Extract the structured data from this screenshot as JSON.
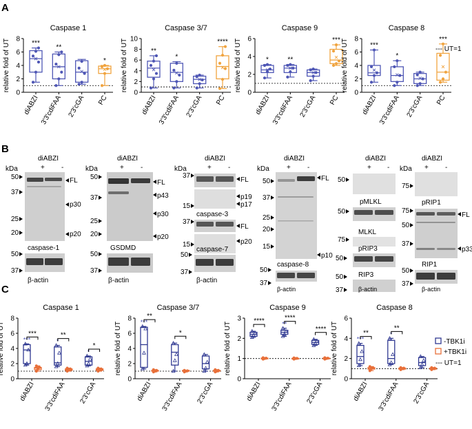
{
  "panels": {
    "A": "A",
    "B": "B",
    "C": "C"
  },
  "panelA": {
    "legend": "--- UT=1",
    "ylabel": "relative fold of UT",
    "charts": [
      {
        "title": "Caspase 1",
        "ymax": 8,
        "yticks": [
          0,
          2,
          4,
          6,
          8
        ],
        "ref": 1,
        "categories": [
          "diABZI",
          "3'3'cdiFAA",
          "2'3'cGA",
          "PC"
        ],
        "boxes": [
          {
            "min": 1.5,
            "q1": 3.0,
            "median": 5.0,
            "q3": 6.2,
            "max": 6.6,
            "mean": 5.0,
            "points": [
              1.5,
              3,
              4.5,
              5.4,
              6.1,
              6.6
            ],
            "sig": "***"
          },
          {
            "min": 1.0,
            "q1": 2.0,
            "median": 3.8,
            "q3": 5.7,
            "max": 6.0,
            "mean": 3.8,
            "points": [
              1,
              2,
              3,
              4.2,
              5.6,
              6
            ],
            "sig": "**"
          },
          {
            "min": 1.2,
            "q1": 1.5,
            "median": 3.0,
            "q3": 4.7,
            "max": 4.9,
            "mean": 3.1,
            "points": [
              1.2,
              1.5,
              2.8,
              3.6,
              4.6
            ],
            "sig": ""
          },
          {
            "min": 1.0,
            "q1": 2.8,
            "median": 3.5,
            "q3": 3.9,
            "max": 4.0,
            "mean": 3.4,
            "points": [
              1,
              2.8,
              3.5,
              3.8,
              4
            ],
            "sig": "*"
          }
        ]
      },
      {
        "title": "Caspase 3/7",
        "ymax": 10,
        "yticks": [
          0,
          2,
          4,
          6,
          8,
          10
        ],
        "ref": 1,
        "categories": [
          "diABZI",
          "3'3'cdiFAA",
          "2'3'cGA",
          "PC"
        ],
        "boxes": [
          {
            "min": 0.8,
            "q1": 2.8,
            "median": 4.5,
            "q3": 5.8,
            "max": 6.8,
            "mean": 4.2,
            "points": [
              0.8,
              2.5,
              3.5,
              5,
              5.8,
              6.8
            ],
            "sig": "**"
          },
          {
            "min": 0.8,
            "q1": 2.0,
            "median": 3.7,
            "q3": 5.4,
            "max": 5.7,
            "mean": 3.6,
            "points": [
              0.8,
              2,
              3.2,
              4.1,
              5.4
            ],
            "sig": "*"
          },
          {
            "min": 0.8,
            "q1": 1.6,
            "median": 2.4,
            "q3": 3.0,
            "max": 3.2,
            "mean": 2.4,
            "points": [
              0.8,
              1.6,
              2.3,
              2.9,
              3.2
            ],
            "sig": ""
          },
          {
            "min": 0.7,
            "q1": 2.5,
            "median": 4.8,
            "q3": 6.8,
            "max": 8.5,
            "mean": 4.6,
            "points": [
              0.7,
              2.4,
              4.4,
              5.4,
              6.9,
              8.5
            ],
            "sig": "****"
          }
        ]
      },
      {
        "title": "Caspase 9",
        "ymax": 6,
        "yticks": [
          0,
          2,
          4,
          6
        ],
        "ref": 1,
        "categories": [
          "diABZI",
          "3'3'cdiFAA",
          "2'3'cGA",
          "PC"
        ],
        "boxes": [
          {
            "min": 1.6,
            "q1": 2.2,
            "median": 2.5,
            "q3": 3.0,
            "max": 3.1,
            "mean": 2.5,
            "points": [
              1.6,
              2.3,
              2.6,
              3,
              3.1
            ],
            "sig": "*"
          },
          {
            "min": 1.7,
            "q1": 2.2,
            "median": 2.7,
            "q3": 3.0,
            "max": 3.1,
            "mean": 2.7,
            "points": [
              1.7,
              2.3,
              2.7,
              3,
              3.1
            ],
            "sig": "**"
          },
          {
            "min": 1.3,
            "q1": 1.8,
            "median": 2.2,
            "q3": 2.5,
            "max": 2.6,
            "mean": 2.2,
            "points": [
              1.3,
              1.8,
              2.2,
              2.5,
              2.6
            ],
            "sig": ""
          },
          {
            "min": 3.0,
            "q1": 3.2,
            "median": 3.6,
            "q3": 4.8,
            "max": 5.3,
            "mean": 3.9,
            "points": [
              3,
              3.2,
              3.5,
              4.6,
              5.3
            ],
            "sig": "***"
          }
        ]
      },
      {
        "title": "Caspase 8",
        "ymax": 8,
        "yticks": [
          0,
          2,
          4,
          6,
          8
        ],
        "ref": 1,
        "categories": [
          "diABZI",
          "3'3'cdiFAA",
          "2'3'cGA",
          "PC"
        ],
        "boxes": [
          {
            "min": 1.5,
            "q1": 2.5,
            "median": 2.9,
            "q3": 4.0,
            "max": 6.3,
            "mean": 3.3,
            "points": [
              1.5,
              2.5,
              2.9,
              3.8,
              6.3
            ],
            "sig": "***"
          },
          {
            "min": 1.0,
            "q1": 1.6,
            "median": 2.5,
            "q3": 3.8,
            "max": 4.7,
            "mean": 2.6,
            "points": [
              1,
              1.5,
              2.5,
              3.8,
              4.7
            ],
            "sig": "*"
          },
          {
            "min": 1.0,
            "q1": 1.3,
            "median": 2.0,
            "q3": 2.8,
            "max": 3.0,
            "mean": 2.1,
            "points": [
              1,
              1.3,
              2,
              2.6,
              3
            ],
            "sig": ""
          },
          {
            "min": 1.5,
            "q1": 1.8,
            "median": 3.0,
            "q3": 5.8,
            "max": 7.2,
            "mean": 3.8,
            "points": [
              1.5,
              2,
              3,
              5.5,
              7.2
            ],
            "sig": "***"
          }
        ]
      }
    ]
  },
  "panelB": {
    "kda": "kDa",
    "treatment": "diABZI",
    "plus": "+",
    "minus": "-",
    "blots": [
      {
        "markers": [
          "50",
          "37",
          "25",
          "20"
        ],
        "bands": [
          "FL",
          "p30",
          "p20"
        ],
        "name": "caspase-1",
        "actin_marker_top": "50",
        "actin_marker_bottom": "37",
        "actin": "β-actin"
      },
      {
        "markers": [
          "50",
          "37",
          "25",
          "20"
        ],
        "bands": [
          "FL",
          "p43",
          "p30",
          "p20"
        ],
        "name": "GSDMD",
        "actin_marker_top": "50",
        "actin_marker_bottom": "37",
        "actin": "β-actin"
      },
      {
        "markers": [
          "37",
          "15",
          "37",
          "15",
          "50",
          "37"
        ],
        "bands": [
          "FL",
          "p19",
          "p17",
          "FL",
          "p20"
        ],
        "name1": "caspase-3",
        "name2": "caspase-7",
        "actin": "β-actin"
      },
      {
        "markers": [
          "50",
          "37",
          "25",
          "20",
          "15",
          "50",
          "37"
        ],
        "bands": [
          "FL",
          "p10"
        ],
        "name": "caspase-8",
        "actin": "β-actin"
      },
      {
        "markers": [
          "50",
          "50",
          "75",
          "50",
          "50",
          "37"
        ],
        "names": [
          "pMLKL",
          "MLKL",
          "pRIP3",
          "RIP3"
        ],
        "actin": "β-actin"
      },
      {
        "markers": [
          "75",
          "75",
          "50",
          "37",
          "50",
          "37"
        ],
        "bands": [
          "FL",
          "p33"
        ],
        "names": [
          "pRIP1",
          "RIP1"
        ],
        "actin": "β-actin"
      }
    ]
  },
  "panelC": {
    "legend": {
      "minus": "-TBK1i",
      "plus": "+TBK1i",
      "ref": "--- UT=1"
    },
    "ylabel": "relative fold of UT",
    "colors": {
      "minus": "#2f3891",
      "plus": "#e8703a",
      "panelA": "#4f57b5",
      "pc": "#f0a440"
    },
    "charts": [
      {
        "title": "Caspase 1",
        "ymax": 8,
        "yticks": [
          0,
          2,
          4,
          6,
          8
        ],
        "ref": 1,
        "categories": [
          "diABZI",
          "3'3'cdiFAA",
          "2'3'cGA"
        ],
        "pairs": [
          {
            "minus": {
              "min": 1.8,
              "q1": 2.0,
              "median": 3.8,
              "q3": 4.5,
              "max": 4.6,
              "points": [
                1.8,
                2,
                3.8,
                4.6
              ]
            },
            "plus": {
              "min": 1.0,
              "q1": 1.2,
              "median": 1.4,
              "q3": 1.5,
              "max": 1.7,
              "points": [
                1,
                1.3,
                1.5,
                1.7
              ]
            },
            "sig_top": "***",
            "sig_minus": "***"
          },
          {
            "minus": {
              "min": 1.6,
              "q1": 1.8,
              "median": 2.1,
              "q3": 4.2,
              "max": 4.4,
              "points": [
                1.6,
                2,
                3.4,
                4.4
              ]
            },
            "plus": {
              "min": 1.0,
              "q1": 1.1,
              "median": 1.2,
              "q3": 1.3,
              "max": 1.4,
              "points": [
                1,
                1.2,
                1.3,
                1.4
              ]
            },
            "sig_top": "**",
            "sig_minus": "*"
          },
          {
            "minus": {
              "min": 1.7,
              "q1": 1.8,
              "median": 2.3,
              "q3": 2.9,
              "max": 3.0,
              "points": [
                1.7,
                2,
                2.6,
                3
              ]
            },
            "plus": {
              "min": 1.0,
              "q1": 1.1,
              "median": 1.2,
              "q3": 1.3,
              "max": 1.4,
              "points": [
                1,
                1.2,
                1.3,
                1.4
              ]
            },
            "sig_top": "*",
            "sig_minus": "*"
          }
        ]
      },
      {
        "title": "Caspase 3/7",
        "ymax": 8,
        "yticks": [
          0,
          2,
          4,
          6,
          8
        ],
        "ref": 1,
        "categories": [
          "diABZI",
          "3'3'cdiFAA",
          "2'3'cGA"
        ],
        "pairs": [
          {
            "minus": {
              "min": 1.3,
              "q1": 1.5,
              "median": 4.5,
              "q3": 6.8,
              "max": 6.9,
              "points": [
                1.3,
                3.4,
                6.6,
                6.9
              ]
            },
            "plus": {
              "min": 0.9,
              "q1": 1.0,
              "median": 1.05,
              "q3": 1.1,
              "max": 1.2,
              "points": [
                0.9,
                1,
                1.1,
                1.2
              ]
            },
            "sig_top": "**",
            "sig_minus": "***"
          },
          {
            "minus": {
              "min": 1.0,
              "q1": 1.8,
              "median": 3.5,
              "q3": 4.5,
              "max": 4.7,
              "points": [
                1,
                2.4,
                3.2,
                4.7
              ]
            },
            "plus": {
              "min": 0.9,
              "q1": 1.0,
              "median": 1.0,
              "q3": 1.1,
              "max": 1.1,
              "points": [
                0.9,
                1,
                1.05,
                1.1
              ]
            },
            "sig_top": "*",
            "sig_minus": ""
          },
          {
            "minus": {
              "min": 1.0,
              "q1": 1.3,
              "median": 2.0,
              "q3": 3.0,
              "max": 3.2,
              "points": [
                1,
                1.4,
                2.2,
                3.2
              ]
            },
            "plus": {
              "min": 0.9,
              "q1": 1.0,
              "median": 1.0,
              "q3": 1.1,
              "max": 1.2,
              "points": [
                0.9,
                1,
                1.1,
                1.2
              ]
            },
            "sig_top": "",
            "sig_minus": ""
          }
        ]
      },
      {
        "title": "Caspase 9",
        "ymax": 3,
        "yticks": [
          0,
          1,
          2,
          3
        ],
        "ref": 1,
        "categories": [
          "diABZI",
          "3'3'cdiFAA",
          "2'3'cGA"
        ],
        "pairs": [
          {
            "minus": {
              "min": 2.05,
              "q1": 2.1,
              "median": 2.2,
              "q3": 2.3,
              "max": 2.35,
              "points": [
                2.05,
                2.15,
                2.25,
                2.35
              ]
            },
            "plus": {
              "min": 0.97,
              "q1": 0.99,
              "median": 1.0,
              "q3": 1.02,
              "max": 1.04,
              "points": [
                0.97,
                1,
                1.02,
                1.04
              ]
            },
            "sig_top": "****",
            "sig_minus": ""
          },
          {
            "minus": {
              "min": 2.1,
              "q1": 2.2,
              "median": 2.3,
              "q3": 2.4,
              "max": 2.5,
              "points": [
                2.1,
                2.2,
                2.35,
                2.5
              ]
            },
            "plus": {
              "min": 0.97,
              "q1": 0.99,
              "median": 1.0,
              "q3": 1.01,
              "max": 1.03,
              "points": [
                0.97,
                1,
                1.01,
                1.03
              ]
            },
            "sig_top": "****",
            "sig_minus": "**"
          },
          {
            "minus": {
              "min": 1.65,
              "q1": 1.7,
              "median": 1.8,
              "q3": 1.9,
              "max": 1.95,
              "points": [
                1.65,
                1.75,
                1.85,
                1.95
              ]
            },
            "plus": {
              "min": 0.97,
              "q1": 0.99,
              "median": 1.0,
              "q3": 1.02,
              "max": 1.04,
              "points": [
                0.97,
                1,
                1.02,
                1.04
              ]
            },
            "sig_top": "****",
            "sig_minus": ""
          }
        ]
      },
      {
        "title": "Caspase 8",
        "ymax": 6,
        "yticks": [
          0,
          2,
          4,
          6
        ],
        "ref": 1,
        "categories": [
          "diABZI",
          "3'3'cdiFAA",
          "2'3'cGA"
        ],
        "pairs": [
          {
            "minus": {
              "min": 1.3,
              "q1": 1.5,
              "median": 2.2,
              "q3": 3.3,
              "max": 3.5,
              "points": [
                1.3,
                1.9,
                2.7,
                3.5
              ]
            },
            "plus": {
              "min": 0.8,
              "q1": 0.95,
              "median": 1.0,
              "q3": 1.1,
              "max": 1.2,
              "points": [
                0.8,
                1,
                1.1,
                1.2
              ]
            },
            "sig_top": "**",
            "sig_minus": "***"
          },
          {
            "minus": {
              "min": 1.4,
              "q1": 1.5,
              "median": 2.0,
              "q3": 3.8,
              "max": 4.0,
              "points": [
                1.4,
                1.6,
                2.4,
                4
              ]
            },
            "plus": {
              "min": 0.9,
              "q1": 0.95,
              "median": 1.0,
              "q3": 1.05,
              "max": 1.1,
              "points": [
                0.9,
                1,
                1.05,
                1.1
              ]
            },
            "sig_top": "**",
            "sig_minus": "*"
          },
          {
            "minus": {
              "min": 1.1,
              "q1": 1.3,
              "median": 1.6,
              "q3": 2.1,
              "max": 2.2,
              "points": [
                1.1,
                1.4,
                1.8,
                2.2
              ]
            },
            "plus": {
              "min": 0.9,
              "q1": 0.95,
              "median": 1.0,
              "q3": 1.05,
              "max": 1.1,
              "points": [
                0.9,
                1,
                1.05,
                1.1
              ]
            },
            "sig_top": "",
            "sig_minus": ""
          }
        ]
      }
    ]
  },
  "chart_data": [
    {
      "type": "box",
      "title": "Caspase 1",
      "ylabel": "relative fold of UT",
      "categories": [
        "diABZI",
        "3'3'cdiFAA",
        "2'3'cGA",
        "PC"
      ],
      "medians": [
        5.0,
        3.8,
        3.0,
        3.5
      ],
      "ylim": [
        0,
        8
      ]
    },
    {
      "type": "box",
      "title": "Caspase 3/7",
      "ylabel": "relative fold of UT",
      "categories": [
        "diABZI",
        "3'3'cdiFAA",
        "2'3'cGA",
        "PC"
      ],
      "medians": [
        4.5,
        3.7,
        2.4,
        4.8
      ],
      "ylim": [
        0,
        10
      ]
    },
    {
      "type": "box",
      "title": "Caspase 9",
      "ylabel": "relative fold of UT",
      "categories": [
        "diABZI",
        "3'3'cdiFAA",
        "2'3'cGA",
        "PC"
      ],
      "medians": [
        2.5,
        2.7,
        2.2,
        3.6
      ],
      "ylim": [
        0,
        6
      ]
    },
    {
      "type": "box",
      "title": "Caspase 8",
      "ylabel": "relative fold of UT",
      "categories": [
        "diABZI",
        "3'3'cdiFAA",
        "2'3'cGA",
        "PC"
      ],
      "medians": [
        2.9,
        2.5,
        2.0,
        3.0
      ],
      "ylim": [
        0,
        8
      ]
    }
  ]
}
